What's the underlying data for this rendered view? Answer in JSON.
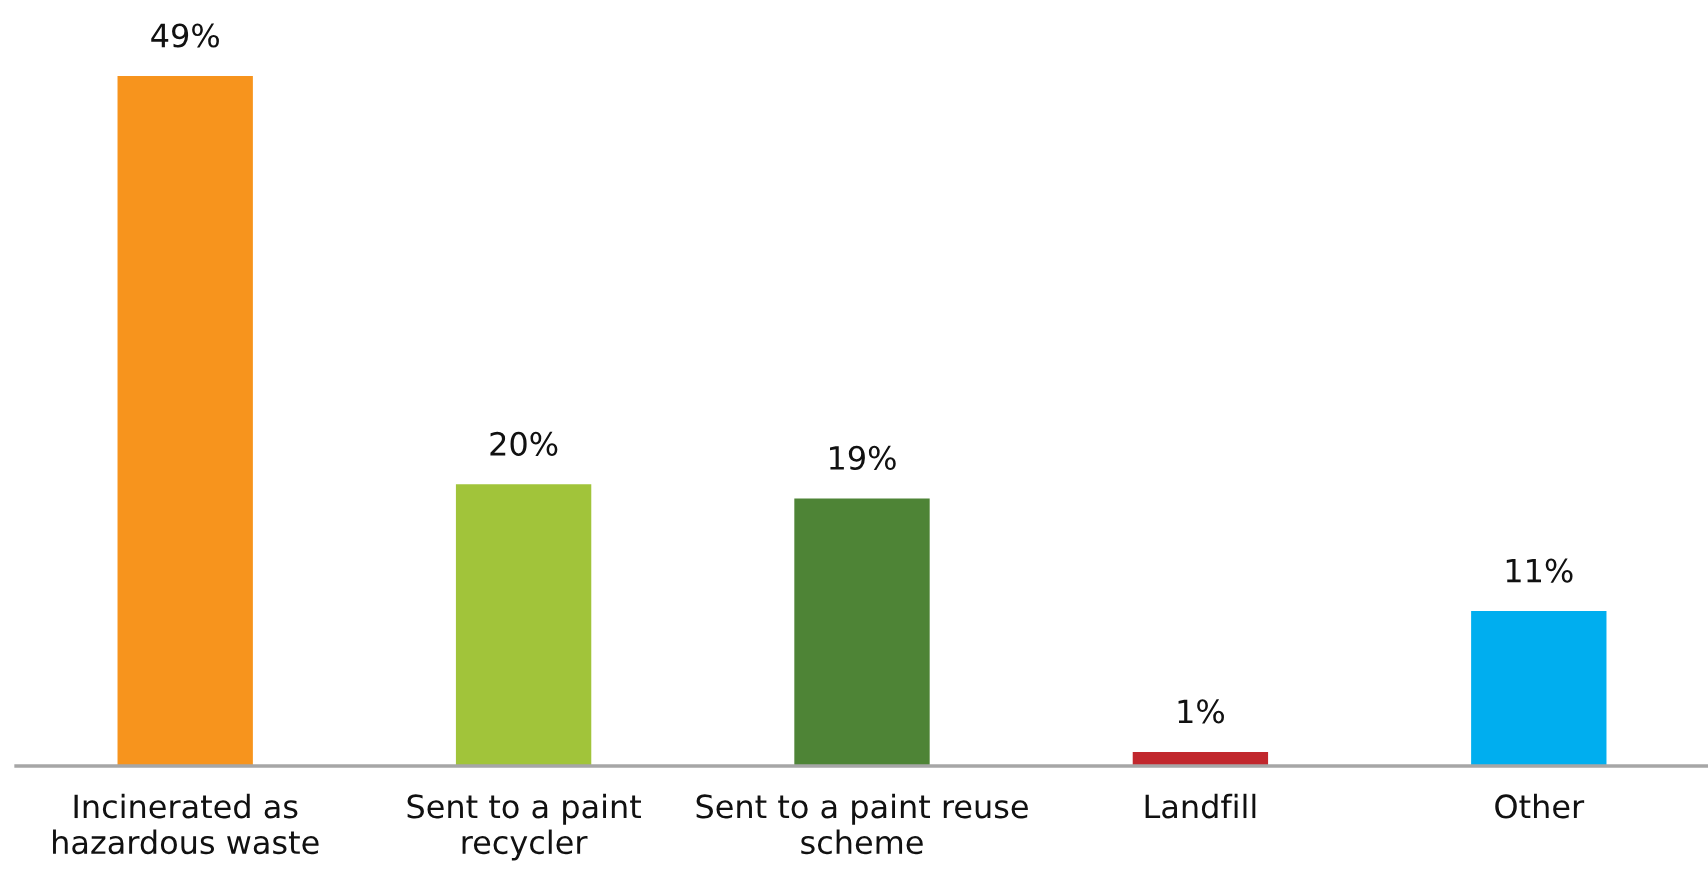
{
  "chart_data": {
    "type": "bar",
    "categories": [
      "Incinerated as\nhazardous waste",
      "Sent to a paint\nrecycler",
      "Sent to a paint reuse\nscheme",
      "Landfill",
      "Other"
    ],
    "values": [
      49,
      20,
      19,
      1,
      11
    ],
    "colors": [
      "#f7941d",
      "#a1c43a",
      "#4e8436",
      "#c1272d",
      "#00aeef"
    ],
    "value_labels": [
      "49%",
      "20%",
      "19%",
      "1%",
      "11%"
    ],
    "grid": false,
    "legend": false,
    "tick_labels": "x"
  }
}
